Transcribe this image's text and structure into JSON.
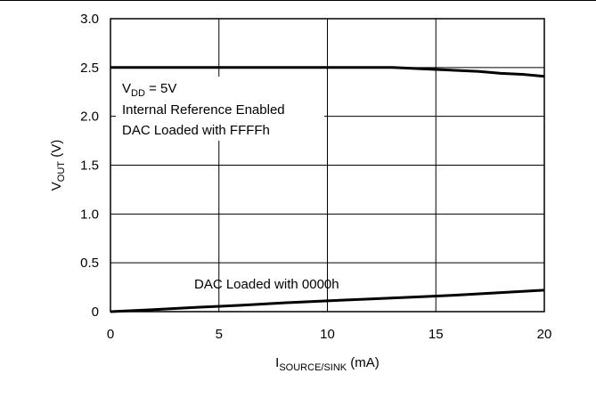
{
  "chart_data": {
    "type": "line",
    "xlabel": {
      "main": "I",
      "sub": "SOURCE/SINK",
      "unit": " (mA)"
    },
    "ylabel": {
      "main": "V",
      "sub": "OUT",
      "unit": " (V)"
    },
    "xlim": [
      0,
      20
    ],
    "ylim": [
      0,
      3.0
    ],
    "x_ticks": [
      "0",
      "5",
      "10",
      "15",
      "20"
    ],
    "y_ticks": [
      "0",
      "0.5",
      "1.0",
      "1.5",
      "2.0",
      "2.5",
      "3.0"
    ],
    "grid": true,
    "annotations": {
      "vdd": {
        "main": "V",
        "sub": "DD",
        "rest": " = 5V"
      },
      "ref": "Internal Reference Enabled",
      "ffff": "DAC Loaded with FFFFh",
      "zero": "DAC Loaded with 0000h"
    },
    "series": [
      {
        "x": [
          0,
          2,
          4,
          6,
          8,
          10,
          12,
          13,
          14,
          15,
          16,
          17,
          18,
          19,
          20
        ],
        "y": [
          2.5,
          2.5,
          2.5,
          2.5,
          2.5,
          2.5,
          2.5,
          2.5,
          2.49,
          2.48,
          2.47,
          2.46,
          2.44,
          2.43,
          2.41
        ]
      },
      {
        "x": [
          0,
          2,
          4,
          6,
          8,
          10,
          12,
          14,
          16,
          18,
          20
        ],
        "y": [
          0.0,
          0.02,
          0.045,
          0.065,
          0.09,
          0.11,
          0.13,
          0.15,
          0.17,
          0.195,
          0.22
        ]
      }
    ]
  }
}
